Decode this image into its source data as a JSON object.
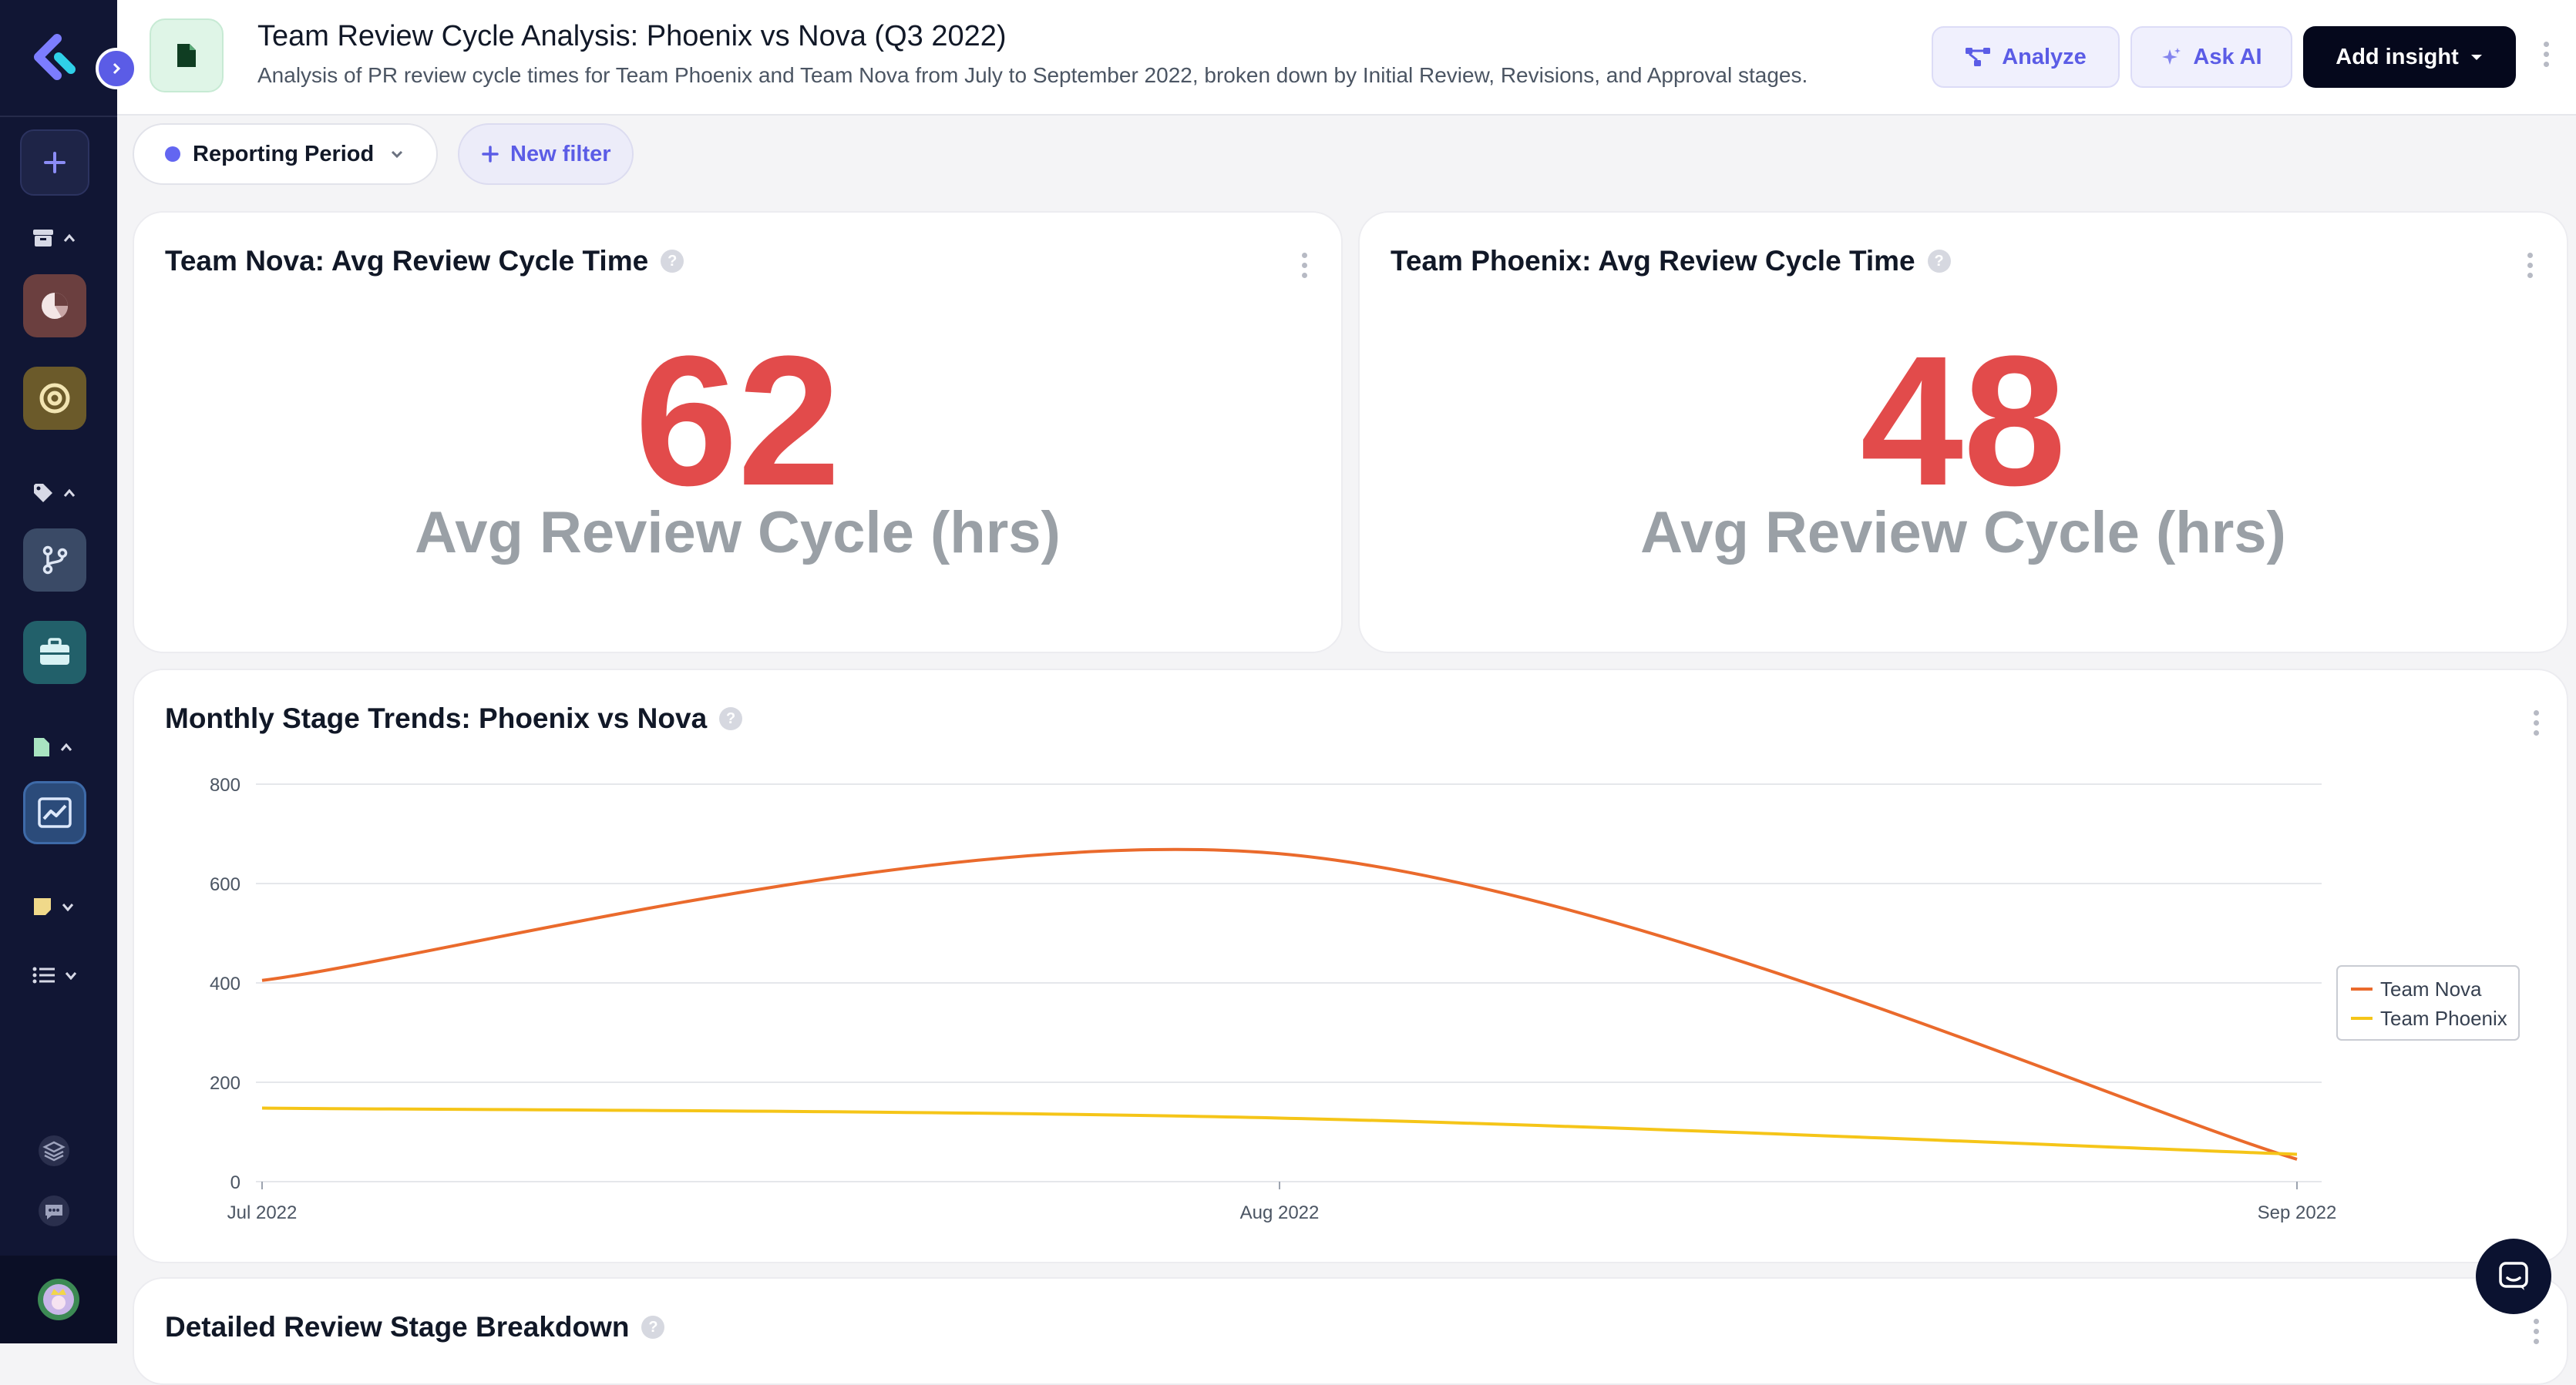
{
  "header": {
    "title": "Team Review Cycle Analysis: Phoenix vs Nova (Q3 2022)",
    "description": "Analysis of PR review cycle times for Team Phoenix and Team Nova from July to September 2022, broken down by Initial Review, Revisions, and Approval stages.",
    "analyze_label": "Analyze",
    "ask_ai_label": "Ask AI",
    "add_insight_label": "Add insight"
  },
  "filters": {
    "reporting_period_label": "Reporting Period",
    "new_filter_label": "New filter"
  },
  "kpis": [
    {
      "title": "Team Nova: Avg Review Cycle Time",
      "value": "62",
      "label": "Avg Review Cycle (hrs)"
    },
    {
      "title": "Team Phoenix: Avg Review Cycle Time",
      "value": "48",
      "label": "Avg Review Cycle (hrs)"
    }
  ],
  "trend_card": {
    "title": "Monthly Stage Trends: Phoenix vs Nova"
  },
  "breakdown_card": {
    "title": "Detailed Review Stage Breakdown"
  },
  "colors": {
    "accent": "#5b5ce6",
    "kpi_red": "#e24b4b",
    "nova": "#ea6a2c",
    "phoenix": "#f5c518"
  },
  "chart_data": {
    "type": "line",
    "categories": [
      "Jul 2022",
      "Aug 2022",
      "Sep 2022"
    ],
    "series": [
      {
        "name": "Team Nova",
        "values": [
          405,
          660,
          45
        ],
        "color": "#ea6a2c"
      },
      {
        "name": "Team Phoenix",
        "values": [
          148,
          128,
          55
        ],
        "color": "#f5c518"
      }
    ],
    "ylim": [
      0,
      800
    ],
    "yticks": [
      0,
      200,
      400,
      600,
      800
    ],
    "grid": true,
    "legend": "right",
    "xlabel": "",
    "ylabel": ""
  }
}
